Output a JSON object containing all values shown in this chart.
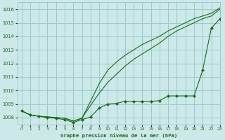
{
  "title": "Graphe pression niveau de la mer (hPa)",
  "background_color": "#cce8e8",
  "grid_color": "#99cccc",
  "line_color": "#1a6b1a",
  "xlim": [
    -0.5,
    23
  ],
  "ylim": [
    1007.5,
    1016.5
  ],
  "yticks": [
    1008,
    1009,
    1010,
    1011,
    1012,
    1013,
    1014,
    1015,
    1016
  ],
  "xticks": [
    0,
    1,
    2,
    3,
    4,
    5,
    6,
    7,
    8,
    9,
    10,
    11,
    12,
    13,
    14,
    15,
    16,
    17,
    18,
    19,
    20,
    21,
    22,
    23
  ],
  "series": [
    {
      "x": [
        0,
        1,
        2,
        3,
        4,
        5,
        6,
        7,
        8,
        9,
        10,
        11,
        12,
        13,
        14,
        15,
        16,
        17,
        18,
        19,
        20,
        21,
        22,
        23
      ],
      "y": [
        1008.5,
        1008.2,
        1008.1,
        1008.0,
        1007.95,
        1007.85,
        1007.65,
        1007.85,
        1008.05,
        1008.7,
        1009.0,
        1009.05,
        1009.2,
        1009.2,
        1009.2,
        1009.2,
        1009.25,
        1009.6,
        1009.6,
        1009.6,
        1009.6,
        1011.5,
        1014.6,
        1015.3
      ],
      "marker": true
    },
    {
      "x": [
        0,
        1,
        2,
        3,
        4,
        5,
        6,
        7,
        8,
        9,
        10,
        11,
        12,
        13,
        14,
        15,
        16,
        17,
        18,
        19,
        20,
        21,
        22,
        23
      ],
      "y": [
        1008.5,
        1008.2,
        1008.1,
        1008.05,
        1008.0,
        1007.95,
        1007.75,
        1007.95,
        1008.9,
        1009.8,
        1010.6,
        1011.2,
        1011.8,
        1012.3,
        1012.7,
        1013.1,
        1013.5,
        1014.0,
        1014.4,
        1014.7,
        1015.0,
        1015.3,
        1015.5,
        1016.0
      ],
      "marker": false
    },
    {
      "x": [
        0,
        1,
        2,
        3,
        4,
        5,
        6,
        7,
        8,
        9,
        10,
        11,
        12,
        13,
        14,
        15,
        16,
        17,
        18,
        19,
        20,
        21,
        22,
        23
      ],
      "y": [
        1008.5,
        1008.2,
        1008.1,
        1008.05,
        1008.0,
        1007.95,
        1007.75,
        1007.95,
        1009.2,
        1010.5,
        1011.5,
        1012.1,
        1012.6,
        1013.0,
        1013.4,
        1013.7,
        1014.0,
        1014.4,
        1014.7,
        1015.0,
        1015.3,
        1015.5,
        1015.7,
        1016.1
      ],
      "marker": false
    }
  ]
}
